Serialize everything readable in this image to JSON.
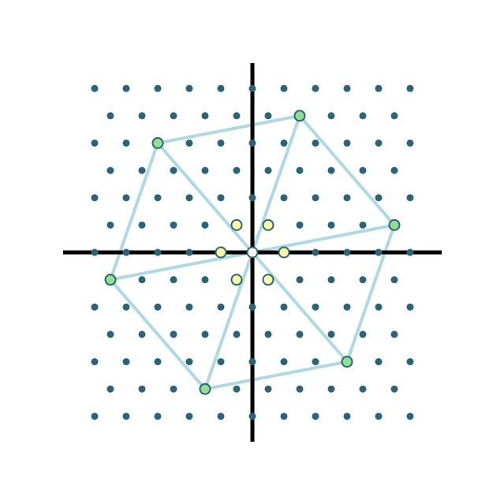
{
  "diagram": {
    "colors": {
      "background": "#ffffff",
      "axis": "#000000",
      "lattice_dot": "#2a6478",
      "sublattice_edge": "#add8e6",
      "sublattice_node_fill": "#8fe08f",
      "node_stroke": "#2a6478",
      "neighbor_fill": "#fbfba0",
      "origin_fill": "#ffffff"
    },
    "lattice": {
      "a1": [
        1,
        0
      ],
      "a2": [
        0.5,
        0.8660254
      ],
      "i_range": [
        -11,
        11
      ],
      "j_range": [
        -7,
        7
      ],
      "extent": [
        5.2,
        6.2
      ]
    },
    "sublattice": {
      "b1": [
        4,
        1
      ],
      "b2": [
        -1,
        5
      ],
      "m_range": [
        -3,
        3
      ],
      "n_range": [
        -3,
        3
      ],
      "edges": [
        "b1",
        "b2",
        "b2-b1"
      ]
    },
    "nearest_neighbors": [
      [
        1,
        0
      ],
      [
        0,
        1
      ],
      [
        -1,
        1
      ],
      [
        -1,
        0
      ],
      [
        0,
        -1
      ],
      [
        1,
        -1
      ]
    ],
    "origin": [
      0,
      0
    ]
  }
}
